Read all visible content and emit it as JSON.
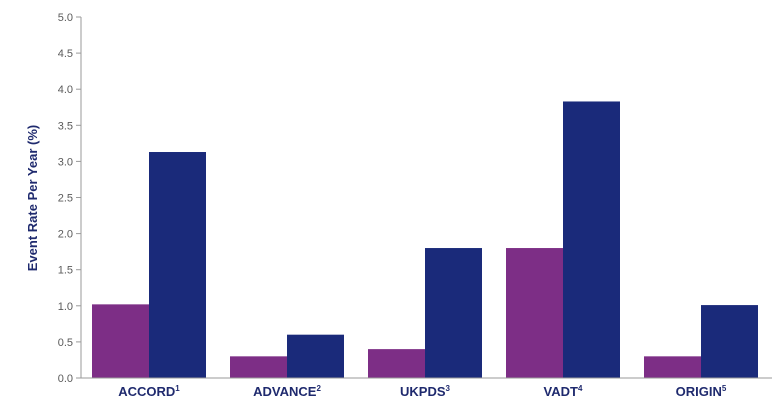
{
  "chart_data": {
    "type": "bar",
    "categories": [
      "ACCORD",
      "ADVANCE",
      "UKPDS",
      "VADT",
      "ORIGIN"
    ],
    "category_superscripts": [
      "1",
      "2",
      "3",
      "4",
      "5"
    ],
    "series": [
      {
        "color": "#7d2e86",
        "values": [
          1.02,
          0.3,
          0.4,
          1.8,
          0.3
        ]
      },
      {
        "color": "#1a2a7a",
        "values": [
          3.13,
          0.6,
          1.8,
          3.83,
          1.01
        ]
      }
    ],
    "title": "",
    "xlabel": "",
    "ylabel": "Event Rate Per Year (%)",
    "ylim": [
      0,
      5.0
    ],
    "yticks": [
      "0.0",
      "0.5",
      "1.0",
      "1.5",
      "2.0",
      "2.5",
      "3.0",
      "3.5",
      "4.0",
      "4.5",
      "5.0"
    ],
    "grid": false,
    "legend": "none"
  }
}
